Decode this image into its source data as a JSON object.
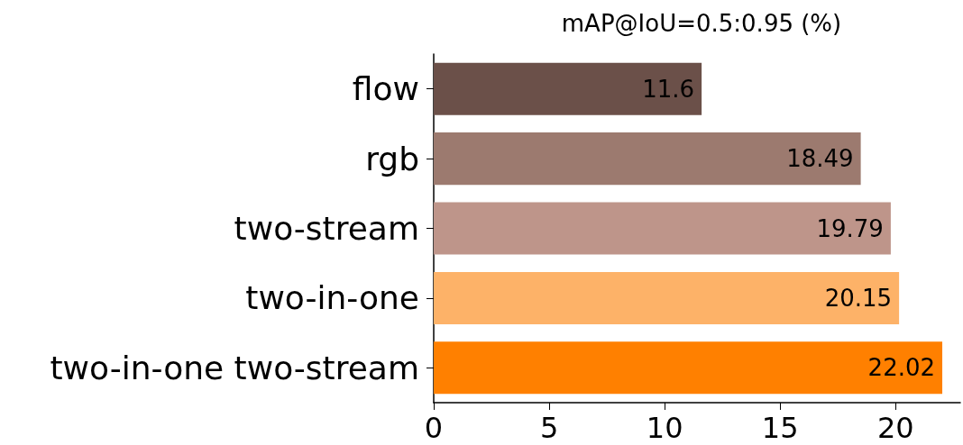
{
  "chart_data": {
    "type": "bar",
    "orientation": "horizontal",
    "title": "mAP@IoU=0.5:0.95 (%)",
    "categories": [
      "flow",
      "rgb",
      "two-stream",
      "two-in-one",
      "two-in-one two-stream"
    ],
    "values": [
      11.6,
      18.49,
      19.79,
      20.15,
      22.02
    ],
    "colors": [
      "#6b5049",
      "#9c7a6f",
      "#be958a",
      "#fdb268",
      "#ff8000"
    ],
    "xlim": [
      0,
      22.8
    ],
    "xticks": [
      0,
      5,
      10,
      15,
      20
    ],
    "data_labels": true,
    "grid": false
  }
}
